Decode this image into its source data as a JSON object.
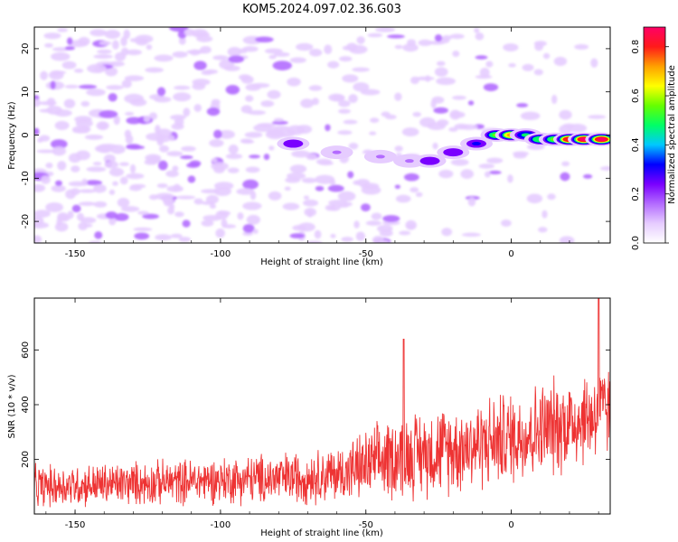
{
  "title": "KOM5.2024.097.02.36.G03",
  "chart_data": [
    {
      "type": "heatmap",
      "xlabel": "Height of straight line (km)",
      "ylabel": "Frequency (Hz)",
      "xlim": [
        -164,
        34
      ],
      "ylim": [
        -25,
        25
      ],
      "xticks": [
        -150,
        -100,
        -50,
        0
      ],
      "yticks": [
        -20,
        -10,
        0,
        10,
        20
      ],
      "colorbar": {
        "label": "Normalized spectral amplitude",
        "range": [
          0.0,
          0.88
        ],
        "ticks": [
          0.0,
          0.2,
          0.4,
          0.6,
          0.8
        ],
        "colors": [
          "#ffffff",
          "#e6ccff",
          "#b36bff",
          "#7a00ff",
          "#0000ff",
          "#00c8ff",
          "#00ff66",
          "#66ff00",
          "#ffff00",
          "#ffa000",
          "#ff1a1a",
          "#ff0066"
        ]
      },
      "ridge": [
        {
          "x": -75,
          "y": -2,
          "v": 0.22
        },
        {
          "x": -60,
          "y": -4,
          "v": 0.15
        },
        {
          "x": -45,
          "y": -5,
          "v": 0.15
        },
        {
          "x": -35,
          "y": -6,
          "v": 0.15
        },
        {
          "x": -28,
          "y": -6,
          "v": 0.2
        },
        {
          "x": -20,
          "y": -4,
          "v": 0.25
        },
        {
          "x": -12,
          "y": -2,
          "v": 0.3
        },
        {
          "x": -5,
          "y": 0,
          "v": 0.55
        },
        {
          "x": 0,
          "y": 0,
          "v": 0.7
        },
        {
          "x": 5,
          "y": 0,
          "v": 0.45
        },
        {
          "x": 10,
          "y": -1,
          "v": 0.5
        },
        {
          "x": 15,
          "y": -1,
          "v": 0.55
        },
        {
          "x": 20,
          "y": -1,
          "v": 0.8
        },
        {
          "x": 25,
          "y": -1,
          "v": 0.85
        },
        {
          "x": 31,
          "y": -1,
          "v": 0.85
        }
      ]
    },
    {
      "type": "line",
      "xlabel": "Height of straight line (km)",
      "ylabel": "SNR (10 * v/v)",
      "xlim": [
        -164,
        34
      ],
      "ylim": [
        0,
        790
      ],
      "xticks": [
        -150,
        -100,
        -50,
        0
      ],
      "yticks": [
        200,
        400,
        600
      ],
      "color": "#ee3333",
      "trend": [
        {
          "x": -164,
          "mean": 100,
          "spread": 90
        },
        {
          "x": -150,
          "mean": 105,
          "spread": 90
        },
        {
          "x": -120,
          "mean": 115,
          "spread": 95
        },
        {
          "x": -100,
          "mean": 125,
          "spread": 100
        },
        {
          "x": -80,
          "mean": 130,
          "spread": 110
        },
        {
          "x": -60,
          "mean": 145,
          "spread": 120
        },
        {
          "x": -50,
          "mean": 175,
          "spread": 150
        },
        {
          "x": -40,
          "mean": 210,
          "spread": 180
        },
        {
          "x": -20,
          "mean": 240,
          "spread": 190
        },
        {
          "x": 0,
          "mean": 280,
          "spread": 200
        },
        {
          "x": 15,
          "mean": 320,
          "spread": 210
        },
        {
          "x": 34,
          "mean": 380,
          "spread": 200
        }
      ],
      "peaks": [
        {
          "x": -37,
          "y": 640
        },
        {
          "x": 30,
          "y": 790
        }
      ]
    }
  ]
}
